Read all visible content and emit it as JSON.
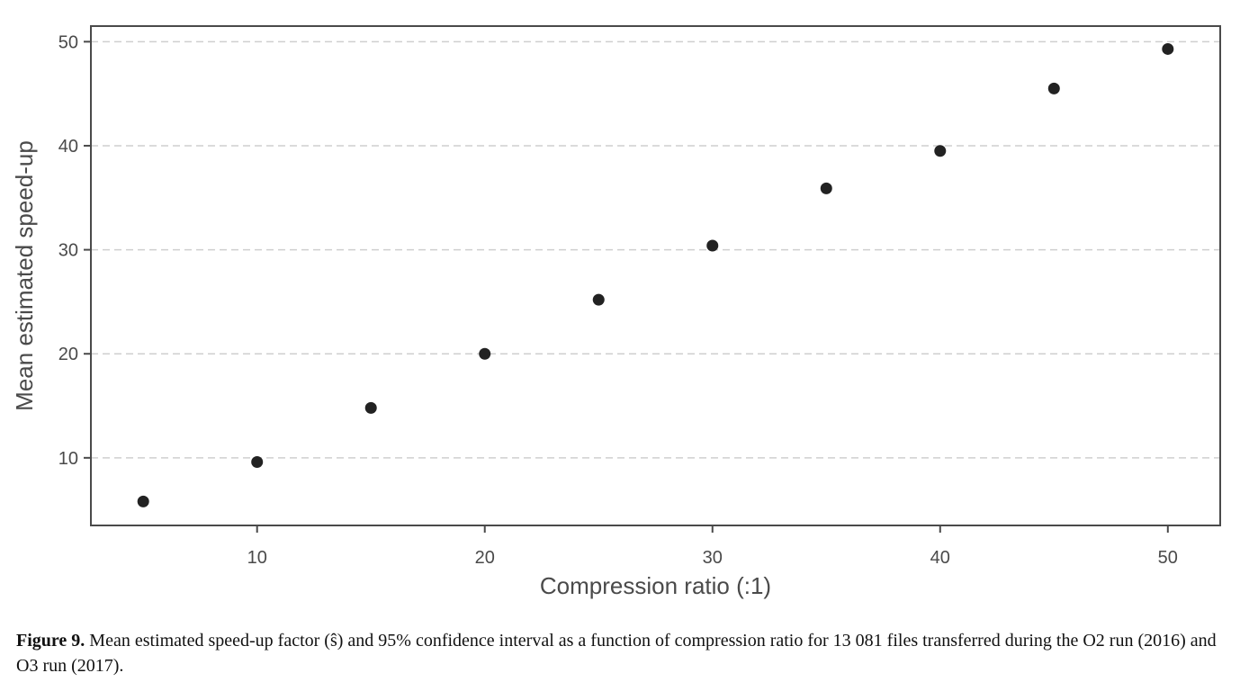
{
  "chart_data": {
    "type": "scatter",
    "xlabel": "Compression ratio (:1)",
    "ylabel": "Mean estimated speed-up",
    "xlim": [
      2.7,
      52.3
    ],
    "ylim": [
      3.5,
      51.5
    ],
    "xticks": [
      10,
      20,
      30,
      40,
      50
    ],
    "yticks": [
      10,
      20,
      30,
      40,
      50
    ],
    "grid": "horizontal-dashed",
    "marker_color": "#222222",
    "series": [
      {
        "x": [
          5,
          10,
          15,
          20,
          25,
          30,
          35,
          40,
          45,
          50
        ],
        "y": [
          5.8,
          9.6,
          14.8,
          20.0,
          25.2,
          30.4,
          35.9,
          39.5,
          45.5,
          49.3
        ]
      }
    ]
  },
  "caption": {
    "label": "Figure 9.",
    "text": "Mean estimated speed-up factor (ŝ) and 95% confidence interval as a function of compression ratio for 13 081 files transferred during the O2 run (2016) and O3 run (2017)."
  }
}
